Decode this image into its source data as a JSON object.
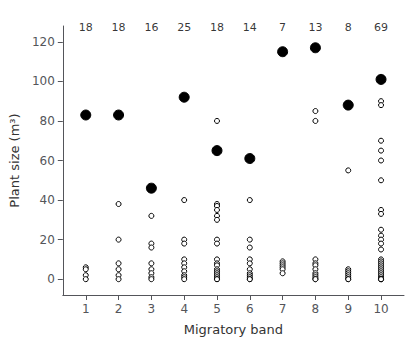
{
  "chart_data": {
    "type": "scatter",
    "title": "",
    "xlabel": "Migratory band",
    "ylabel": "Plant size (m³)",
    "xlim": [
      0.3,
      10.7
    ],
    "ylim": [
      -8,
      128
    ],
    "xticks": [
      1,
      2,
      3,
      4,
      5,
      6,
      7,
      8,
      9,
      10
    ],
    "yticks": [
      0,
      20,
      40,
      60,
      80,
      100,
      120
    ],
    "grid": false,
    "series": [
      {
        "marker": "open_circle",
        "color": "black",
        "x": [
          1,
          1,
          1,
          1,
          2,
          2,
          2,
          2,
          2,
          2,
          3,
          3,
          3,
          3,
          3,
          3,
          3,
          3,
          4,
          4,
          4,
          4,
          4,
          4,
          4,
          4,
          4,
          4,
          5,
          5,
          5,
          5,
          5,
          5,
          5,
          5,
          5,
          5,
          5,
          5,
          5,
          5,
          5,
          5,
          5,
          5,
          6,
          6,
          6,
          6,
          6,
          6,
          6,
          6,
          6,
          6,
          6,
          7,
          7,
          7,
          7,
          7,
          7,
          8,
          8,
          8,
          8,
          8,
          8,
          8,
          8,
          8,
          8,
          8,
          9,
          9,
          9,
          9,
          9,
          9,
          9,
          9,
          10,
          10,
          10,
          10,
          10,
          10,
          10,
          10,
          10,
          10,
          10,
          10,
          10,
          10,
          10,
          10,
          10,
          10,
          10,
          10,
          10,
          10,
          10,
          10,
          10,
          10,
          10,
          10,
          10
        ],
        "values": [
          6,
          5,
          2,
          0,
          38,
          20,
          8,
          5,
          2,
          0,
          32,
          18,
          16,
          8,
          5,
          3,
          1,
          0,
          40,
          20,
          18,
          10,
          8,
          6,
          4,
          2,
          1,
          0,
          80,
          38,
          37,
          35,
          32,
          30,
          20,
          18,
          10,
          8,
          7,
          5,
          4,
          3,
          2,
          1,
          0,
          0,
          40,
          20,
          16,
          10,
          8,
          5,
          3,
          2,
          1,
          0,
          0,
          9,
          8,
          7,
          6,
          5,
          3,
          85,
          80,
          10,
          8,
          7,
          5,
          3,
          2,
          1,
          0,
          0,
          55,
          5,
          4,
          3,
          2,
          1,
          0,
          0,
          90,
          88,
          70,
          65,
          60,
          50,
          35,
          33,
          25,
          22,
          20,
          18,
          15,
          10,
          9,
          8,
          7,
          6,
          5,
          4,
          3,
          2,
          1,
          0,
          0,
          0,
          0,
          0,
          0
        ]
      },
      {
        "marker": "circle",
        "color": "black",
        "x": [
          1,
          2,
          3,
          4,
          5,
          6,
          7,
          8,
          9,
          10
        ],
        "values": [
          83,
          83,
          46,
          92,
          65,
          61,
          115,
          117,
          88,
          101
        ]
      }
    ],
    "annotations": [
      {
        "x": 1,
        "y": 124,
        "text": "18"
      },
      {
        "x": 2,
        "y": 124,
        "text": "18"
      },
      {
        "x": 3,
        "y": 124,
        "text": "16"
      },
      {
        "x": 4,
        "y": 124,
        "text": "25"
      },
      {
        "x": 5,
        "y": 124,
        "text": "18"
      },
      {
        "x": 6,
        "y": 124,
        "text": "14"
      },
      {
        "x": 7,
        "y": 124,
        "text": "7"
      },
      {
        "x": 8,
        "y": 124,
        "text": "13"
      },
      {
        "x": 9,
        "y": 124,
        "text": "8"
      },
      {
        "x": 10,
        "y": 124,
        "text": "69"
      }
    ]
  }
}
